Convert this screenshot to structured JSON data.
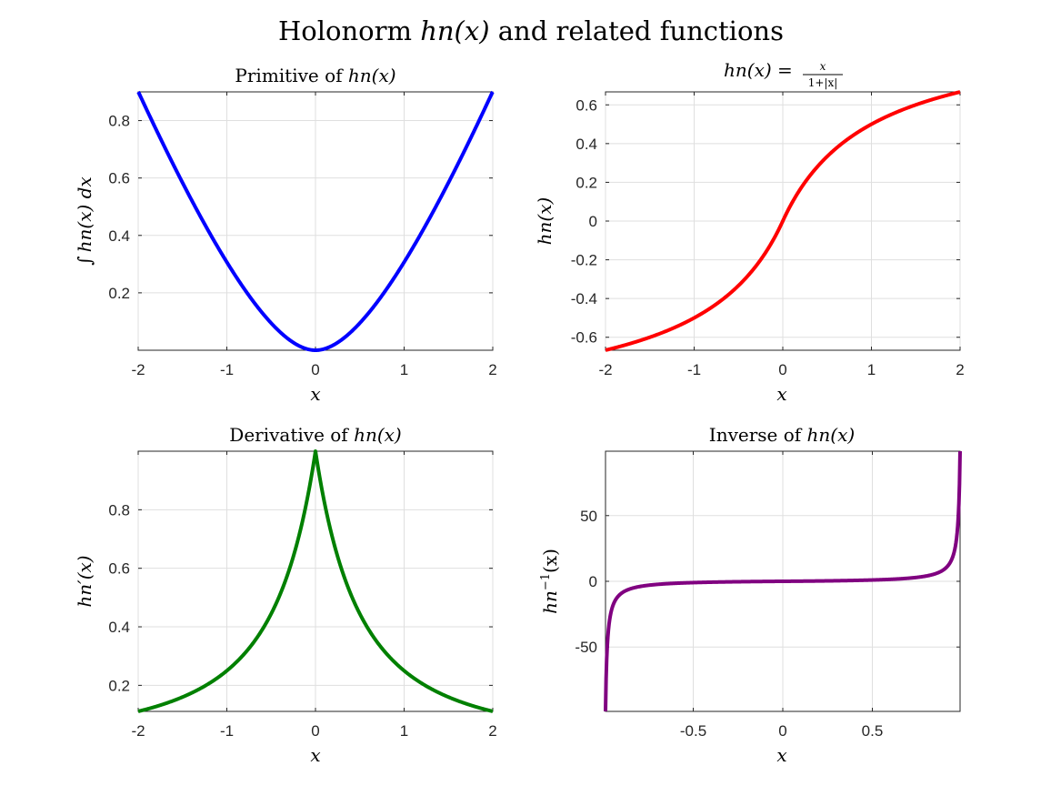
{
  "figure": {
    "suptitle_prefix": "Holonorm ",
    "suptitle_fn": "hn(x)",
    "suptitle_suffix": " and related functions"
  },
  "chart_data": [
    {
      "type": "line",
      "function": "primitive",
      "title_prefix": "Primitive of ",
      "title_fn": "hn(x)",
      "xlabel": "x",
      "ylabel_integral": "∫",
      "ylabel_body": "hn(x) dx",
      "xlim": [
        -2,
        2
      ],
      "ylim": [
        0,
        0.9
      ],
      "xticks": [
        -2,
        -1,
        0,
        1,
        2
      ],
      "xtick_labels": [
        "-2",
        "-1",
        "0",
        "1",
        "2"
      ],
      "yticks": [
        0.2,
        0.4,
        0.6,
        0.8
      ],
      "ytick_labels": [
        "0.2",
        "0.4",
        "0.6",
        "0.8"
      ],
      "grid": true,
      "color": "#0000ff",
      "x": [
        -2,
        -1.5,
        -1,
        -0.5,
        0,
        0.5,
        1,
        1.5,
        2
      ],
      "y": [
        0.901,
        0.584,
        0.307,
        0.095,
        0,
        0.095,
        0.307,
        0.584,
        0.901
      ]
    },
    {
      "type": "line",
      "function": "hn",
      "title_fn": "hn(x) =",
      "title_frac_num": "x",
      "title_frac_den": "1+|x|",
      "xlabel": "x",
      "ylabel": "hn(x)",
      "xlim": [
        -2,
        2
      ],
      "ylim": [
        -0.667,
        0.667
      ],
      "xticks": [
        -2,
        -1,
        0,
        1,
        2
      ],
      "xtick_labels": [
        "-2",
        "-1",
        "0",
        "1",
        "2"
      ],
      "yticks": [
        -0.6,
        -0.4,
        -0.2,
        0,
        0.2,
        0.4,
        0.6
      ],
      "ytick_labels": [
        "-0.6",
        "-0.4",
        "-0.2",
        "0",
        "0.2",
        "0.4",
        "0.6"
      ],
      "grid": true,
      "color": "#ff0000",
      "x": [
        -2,
        -1.5,
        -1,
        -0.5,
        0,
        0.5,
        1,
        1.5,
        2
      ],
      "y": [
        -0.667,
        -0.6,
        -0.5,
        -0.333,
        0,
        0.333,
        0.5,
        0.6,
        0.667
      ]
    },
    {
      "type": "line",
      "function": "derivative",
      "title_prefix": "Derivative of ",
      "title_fn": "hn(x)",
      "xlabel": "x",
      "ylabel": "hn′(x)",
      "xlim": [
        -2,
        2
      ],
      "ylim": [
        0.111,
        1
      ],
      "xticks": [
        -2,
        -1,
        0,
        1,
        2
      ],
      "xtick_labels": [
        "-2",
        "-1",
        "0",
        "1",
        "2"
      ],
      "yticks": [
        0.2,
        0.4,
        0.6,
        0.8
      ],
      "ytick_labels": [
        "0.2",
        "0.4",
        "0.6",
        "0.8"
      ],
      "grid": true,
      "color": "#008000",
      "x": [
        -2,
        -1.5,
        -1,
        -0.5,
        0,
        0.5,
        1,
        1.5,
        2
      ],
      "y": [
        0.111,
        0.16,
        0.25,
        0.444,
        1,
        0.444,
        0.25,
        0.16,
        0.111
      ]
    },
    {
      "type": "line",
      "function": "inverse",
      "title_prefix": "Inverse of ",
      "title_fn": "hn(x)",
      "xlabel": "x",
      "ylabel": "hn",
      "ylabel_sup": "−1",
      "ylabel_tail": "(x)",
      "xlim": [
        -0.99,
        0.99
      ],
      "ylim": [
        -99,
        99
      ],
      "xticks": [
        -0.5,
        0,
        0.5
      ],
      "xtick_labels": [
        "-0.5",
        "0",
        "0.5"
      ],
      "yticks": [
        -50,
        0,
        50
      ],
      "ytick_labels": [
        "-50",
        "0",
        "50"
      ],
      "grid": true,
      "color": "#800080",
      "x": [
        -0.99,
        -0.95,
        -0.9,
        -0.5,
        0,
        0.5,
        0.9,
        0.95,
        0.99
      ],
      "y": [
        -99,
        -19,
        -9,
        -1,
        0,
        1,
        9,
        19,
        99
      ]
    }
  ]
}
